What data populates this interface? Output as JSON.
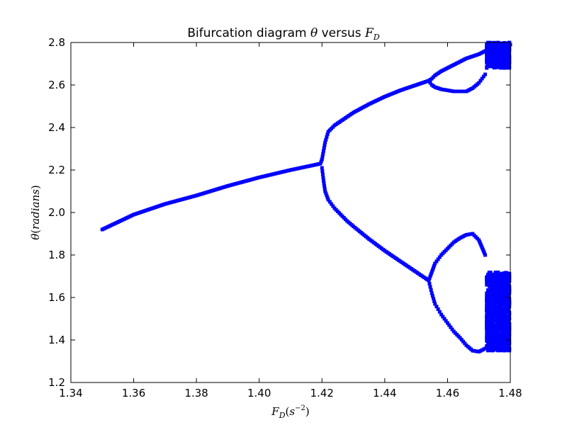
{
  "chart_data": {
    "type": "scatter",
    "title": "Bifurcation diagram θ versus F_D",
    "title_parts": {
      "prefix": "Bifurcation diagram ",
      "theta": "θ",
      "mid": " versus ",
      "F": "F",
      "D": "D"
    },
    "xlabel": "F_D(s^-2)",
    "xlabel_parts": {
      "F": "F",
      "D": "D",
      "open": "(",
      "s": "s",
      "exp": "−2",
      "close": ")"
    },
    "ylabel": "θ(radians)",
    "ylabel_parts": {
      "theta": "θ",
      "open": "(",
      "word": "radians",
      "close": ")"
    },
    "xlim": [
      1.34,
      1.48
    ],
    "ylim": [
      1.2,
      2.8
    ],
    "xticks": [
      "1.34",
      "1.36",
      "1.38",
      "1.40",
      "1.42",
      "1.44",
      "1.46",
      "1.48"
    ],
    "yticks": [
      "1.2",
      "1.4",
      "1.6",
      "1.8",
      "2.0",
      "2.2",
      "2.4",
      "2.6",
      "2.8"
    ],
    "grid": false,
    "marker_color": "#0000ff",
    "series": [
      {
        "x": [
          1.35,
          1.36,
          1.37,
          1.38,
          1.39,
          1.4,
          1.41,
          1.418,
          1.4195,
          1.42
        ],
        "y": [
          1.92,
          1.99,
          2.04,
          2.08,
          2.125,
          2.165,
          2.2,
          2.225,
          2.23,
          2.25
        ]
      },
      {
        "x": [
          1.42,
          1.421,
          1.422,
          1.424,
          1.426,
          1.428,
          1.43,
          1.435,
          1.44,
          1.445,
          1.45,
          1.454
        ],
        "y": [
          2.25,
          2.33,
          2.38,
          2.41,
          2.43,
          2.45,
          2.47,
          2.51,
          2.545,
          2.575,
          2.6,
          2.62
        ]
      },
      {
        "x": [
          1.42,
          1.4205,
          1.421,
          1.422,
          1.424,
          1.426,
          1.428,
          1.43,
          1.435,
          1.44,
          1.445,
          1.45,
          1.454
        ],
        "y": [
          2.21,
          2.15,
          2.1,
          2.06,
          2.02,
          1.99,
          1.96,
          1.935,
          1.875,
          1.82,
          1.77,
          1.72,
          1.68
        ]
      },
      {
        "x": [
          1.454,
          1.455,
          1.456,
          1.458,
          1.46,
          1.462,
          1.464,
          1.466,
          1.468,
          1.47,
          1.472,
          1.474,
          1.476,
          1.478,
          1.48
        ],
        "y": [
          2.62,
          2.63,
          2.645,
          2.665,
          2.68,
          2.695,
          2.71,
          2.725,
          2.735,
          2.745,
          2.76,
          2.77,
          2.775,
          2.78,
          2.79
        ]
      },
      {
        "x": [
          1.454,
          1.455,
          1.456,
          1.458,
          1.46,
          1.462,
          1.464,
          1.466,
          1.468,
          1.47,
          1.472
        ],
        "y": [
          2.62,
          2.6,
          2.59,
          2.58,
          2.575,
          2.57,
          2.57,
          2.57,
          2.585,
          2.61,
          2.65
        ]
      },
      {
        "x": [
          1.454,
          1.455,
          1.456,
          1.458,
          1.46,
          1.462,
          1.464,
          1.466,
          1.468,
          1.47,
          1.472
        ],
        "y": [
          1.68,
          1.72,
          1.76,
          1.8,
          1.83,
          1.86,
          1.88,
          1.895,
          1.9,
          1.87,
          1.8
        ]
      },
      {
        "x": [
          1.454,
          1.455,
          1.456,
          1.458,
          1.46,
          1.462,
          1.464,
          1.466,
          1.468,
          1.47,
          1.472
        ],
        "y": [
          1.68,
          1.62,
          1.57,
          1.52,
          1.48,
          1.44,
          1.41,
          1.375,
          1.35,
          1.345,
          1.36
        ]
      }
    ]
  }
}
